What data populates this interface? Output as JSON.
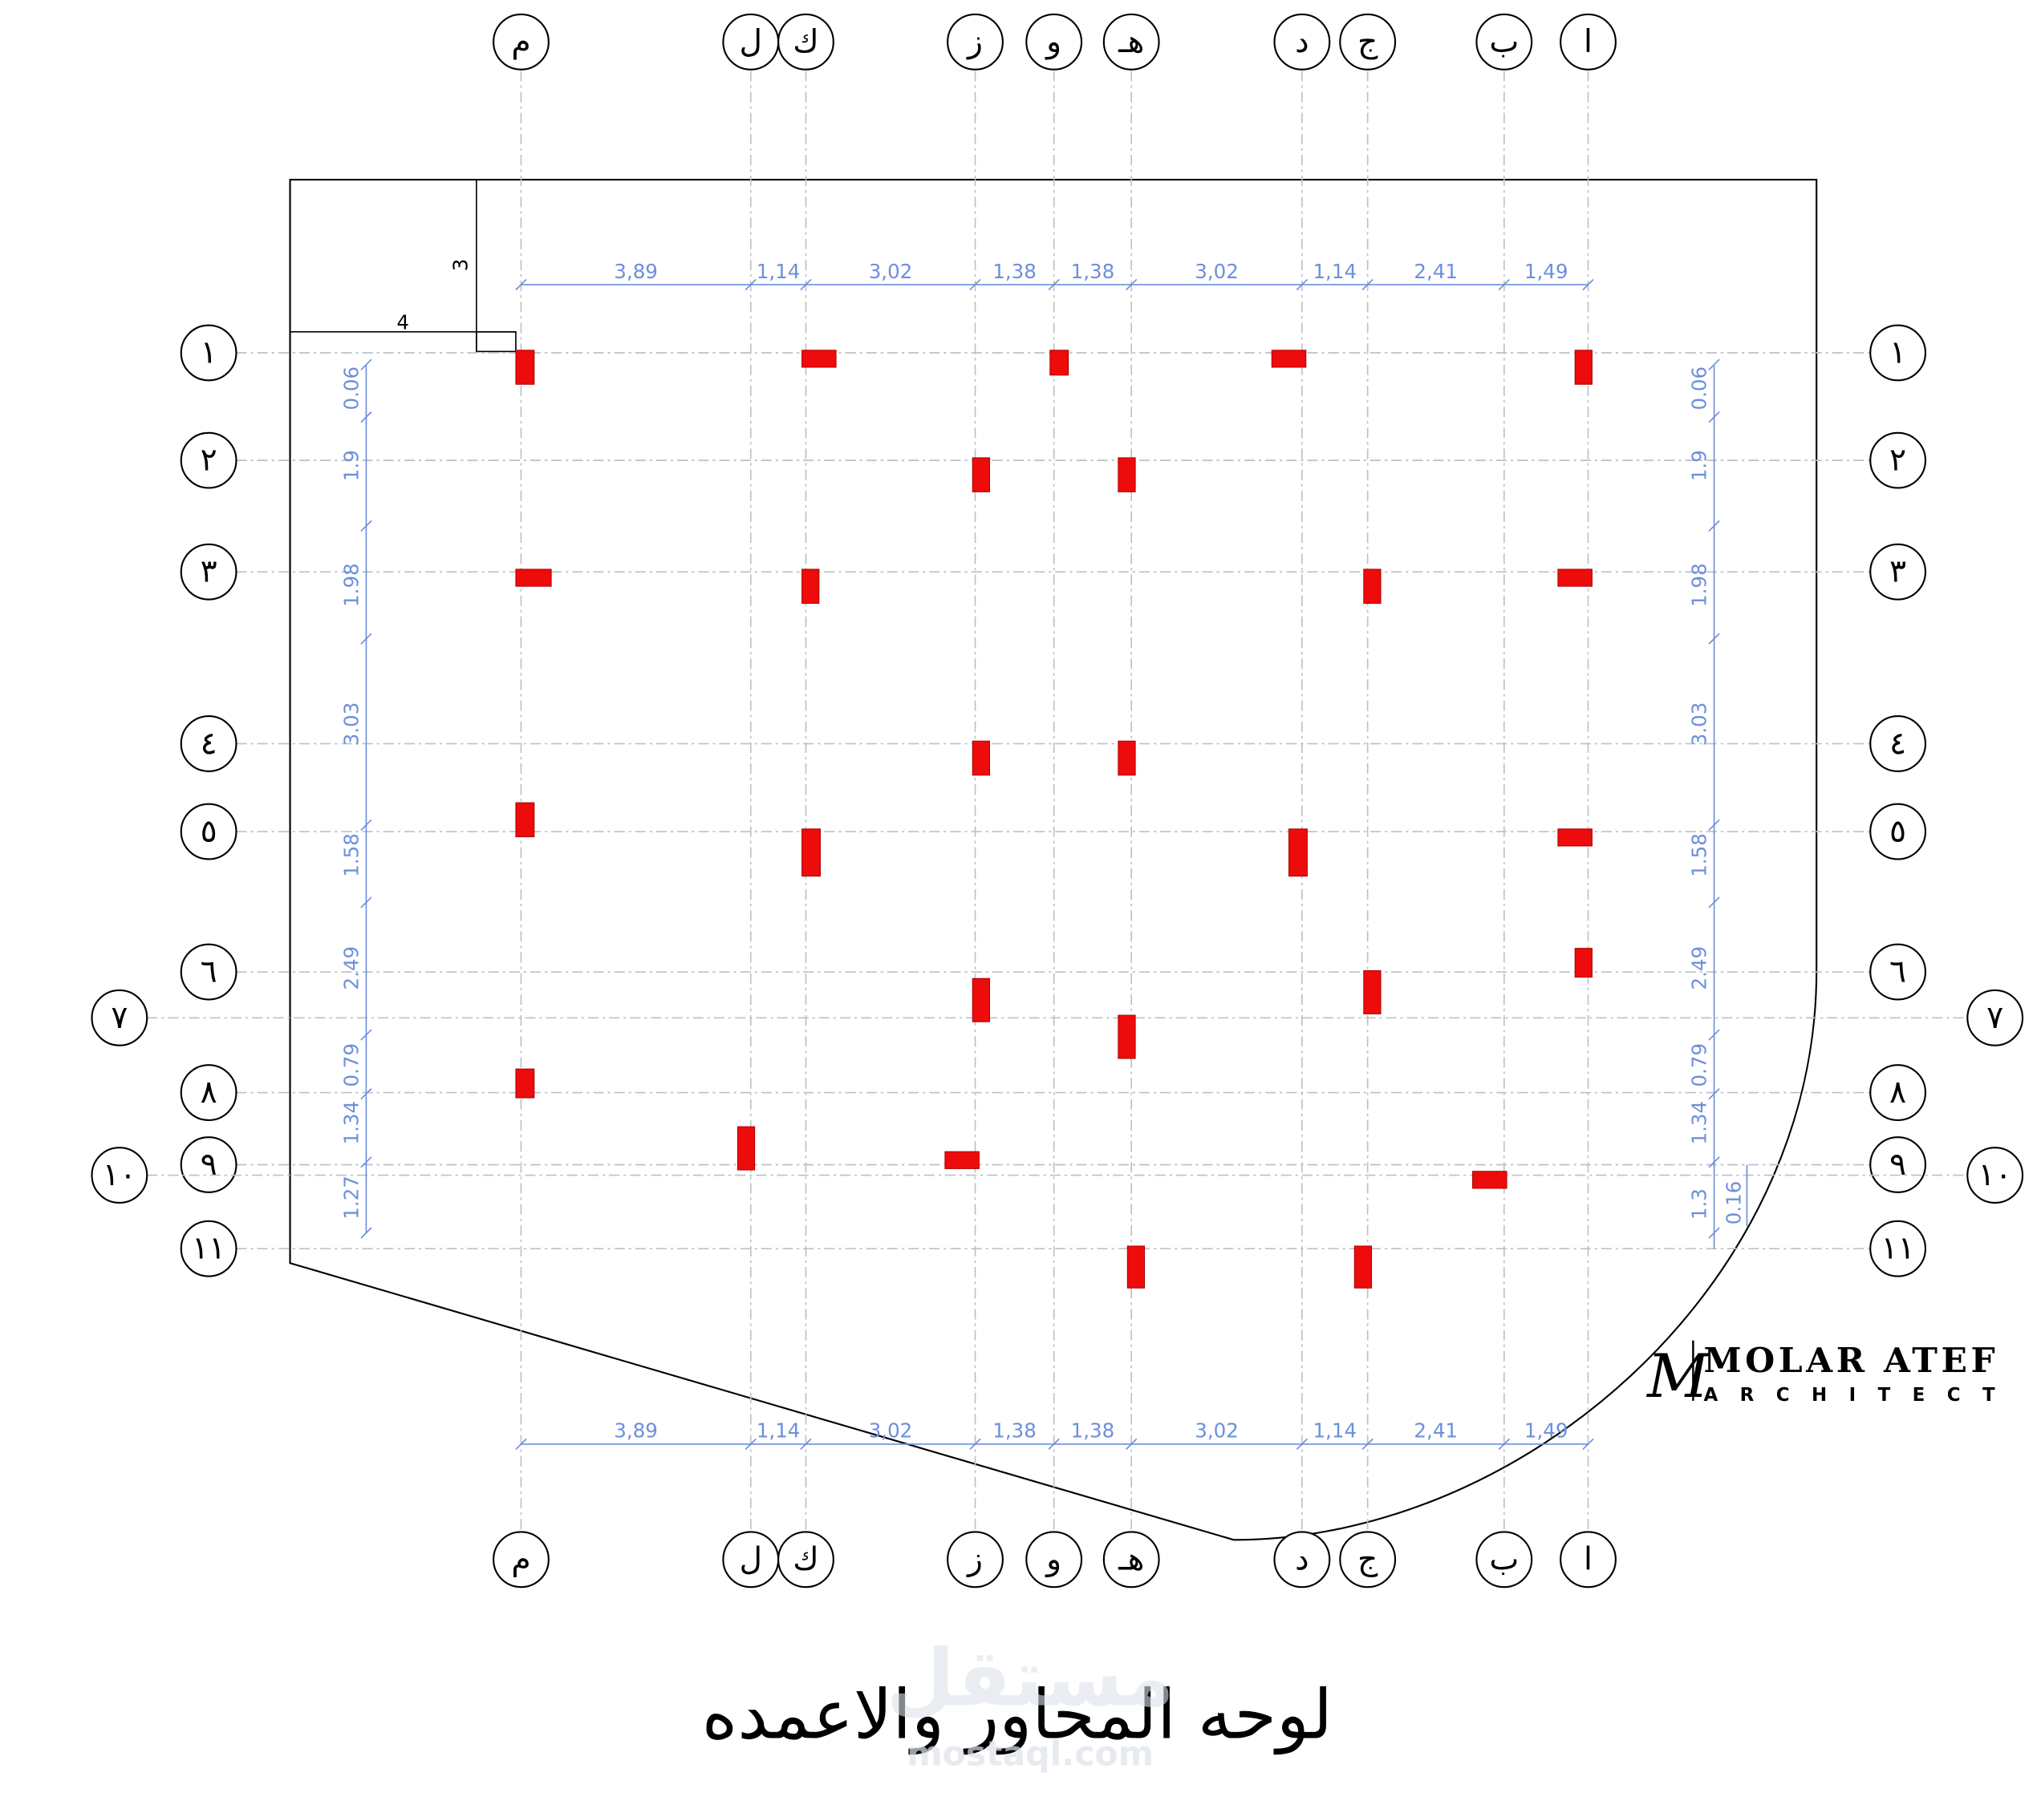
{
  "vertical_axes": [
    "م",
    "ل",
    "ك",
    "ز",
    "و",
    "هـ",
    "د",
    "ج",
    "ب",
    "ا"
  ],
  "horizontal_axes": [
    "١",
    "٢",
    "٣",
    "٤",
    "٥",
    "٦",
    "٧",
    "٨",
    "٩",
    "١٠",
    "١١"
  ],
  "dimensions": {
    "horizontal": [
      "3,89",
      "1,14",
      "3,02",
      "1,38",
      "1,38",
      "3,02",
      "1,14",
      "2,41",
      "1,49"
    ],
    "left": [
      "0.06",
      "1.9",
      "1.98",
      "3.03",
      "1.58",
      "2.49",
      "0.79",
      "1.34",
      "1.27"
    ],
    "right": [
      "0.06",
      "1.9",
      "1.98",
      "3.03",
      "1.58",
      "2.49",
      "0.79",
      "1.34",
      "1.3",
      "0.16"
    ],
    "outline": [
      "4",
      "3"
    ]
  },
  "title": "لوحه المحاور والاعمده",
  "logo": {
    "name": "MOLAR ATEF",
    "subtitle": "ARCHITECT"
  },
  "watermark": {
    "arabic": "مستقل",
    "latin": "mostaql.com"
  }
}
